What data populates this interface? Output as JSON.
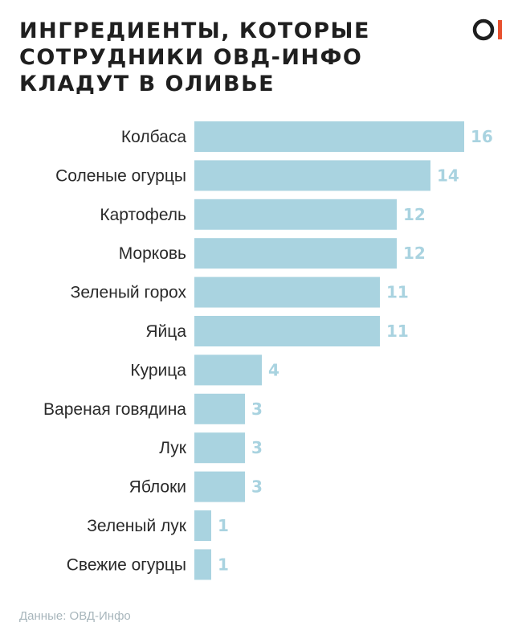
{
  "header": {
    "title_lines": [
      "ИНГРЕДИЕНТЫ, КОТОРЫЕ",
      "СОТРУДНИКИ ОВД-ИНФО",
      "КЛАДУТ В ОЛИВЬЕ"
    ],
    "logo_text": "OI",
    "logo_accent": "#e8512f"
  },
  "chart_data": {
    "type": "bar",
    "orientation": "horizontal",
    "title": "ИНГРЕДИЕНТЫ, КОТОРЫЕ СОТРУДНИКИ ОВД-ИНФО КЛАДУТ В ОЛИВЬЕ",
    "categories": [
      "Колбаса",
      "Соленые огурцы",
      "Картофель",
      "Морковь",
      "Зеленый горох",
      "Яйца",
      "Курица",
      "Вареная говядина",
      "Лук",
      "Яблоки",
      "Зеленый лук",
      "Свежие огурцы"
    ],
    "values": [
      16,
      14,
      12,
      12,
      11,
      11,
      4,
      3,
      3,
      3,
      1,
      1
    ],
    "xlim": [
      0,
      16
    ],
    "grid": false,
    "legend": "none",
    "bar_color": "#a9d3e0",
    "label_color": "#a9d3e0"
  },
  "footer": {
    "source": "Данные: ОВД-Инфо"
  }
}
